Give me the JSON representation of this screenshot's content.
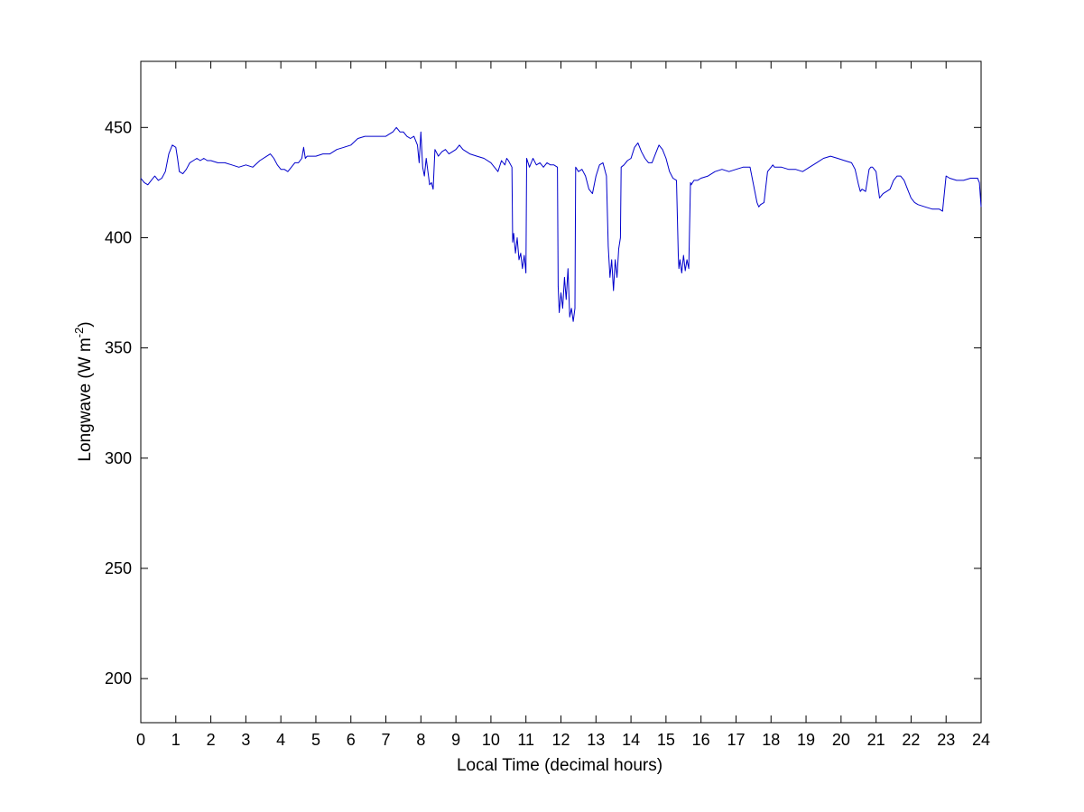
{
  "chart_data": {
    "type": "line",
    "title": "",
    "xlabel": "Local Time (decimal hours)",
    "ylabel": "Longwave (W m",
    "ylabel_sup": "-2",
    "ylabel_suffix": ")",
    "xlim": [
      0,
      24
    ],
    "ylim": [
      180,
      480
    ],
    "xticks": [
      "0",
      "1",
      "2",
      "3",
      "4",
      "5",
      "6",
      "7",
      "8",
      "9",
      "10",
      "11",
      "12",
      "13",
      "14",
      "15",
      "16",
      "17",
      "18",
      "19",
      "20",
      "21",
      "22",
      "23",
      "24"
    ],
    "yticks": [
      "200",
      "250",
      "300",
      "350",
      "400",
      "450"
    ],
    "grid": false,
    "line_color": "#0000cc",
    "series": [
      {
        "x": [
          0,
          0.1,
          0.2,
          0.3,
          0.4,
          0.5,
          0.6,
          0.7,
          0.8,
          0.9,
          1.0,
          1.05,
          1.1,
          1.2,
          1.3,
          1.4,
          1.5,
          1.6,
          1.7,
          1.8,
          1.9,
          2.0,
          2.2,
          2.4,
          2.6,
          2.8,
          3.0,
          3.2,
          3.4,
          3.6,
          3.7,
          3.8,
          3.9,
          4.0,
          4.1,
          4.2,
          4.3,
          4.4,
          4.5,
          4.6,
          4.65,
          4.7,
          4.75,
          4.8,
          5.0,
          5.2,
          5.4,
          5.6,
          5.8,
          6.0,
          6.2,
          6.4,
          6.6,
          6.8,
          7.0,
          7.1,
          7.2,
          7.3,
          7.4,
          7.5,
          7.6,
          7.7,
          7.8,
          7.9,
          7.95,
          8.0,
          8.05,
          8.1,
          8.15,
          8.2,
          8.25,
          8.3,
          8.35,
          8.4,
          8.5,
          8.6,
          8.7,
          8.8,
          8.9,
          9.0,
          9.1,
          9.2,
          9.4,
          9.6,
          9.8,
          10.0,
          10.2,
          10.3,
          10.4,
          10.45,
          10.5,
          10.6,
          10.62,
          10.65,
          10.7,
          10.75,
          10.8,
          10.85,
          10.9,
          10.95,
          11.0,
          11.02,
          11.1,
          11.2,
          11.3,
          11.4,
          11.5,
          11.6,
          11.7,
          11.8,
          11.9,
          11.92,
          11.95,
          12.0,
          12.05,
          12.1,
          12.15,
          12.2,
          12.25,
          12.3,
          12.35,
          12.4,
          12.42,
          12.5,
          12.6,
          12.7,
          12.8,
          12.9,
          13.0,
          13.1,
          13.2,
          13.3,
          13.35,
          13.4,
          13.45,
          13.5,
          13.55,
          13.6,
          13.65,
          13.7,
          13.72,
          13.8,
          13.9,
          14.0,
          14.1,
          14.2,
          14.3,
          14.4,
          14.5,
          14.6,
          14.7,
          14.8,
          14.9,
          15.0,
          15.1,
          15.2,
          15.3,
          15.35,
          15.37,
          15.4,
          15.45,
          15.5,
          15.55,
          15.6,
          15.65,
          15.7,
          15.72,
          15.8,
          15.9,
          16.0,
          16.2,
          16.4,
          16.6,
          16.8,
          17.0,
          17.2,
          17.4,
          17.6,
          17.65,
          17.7,
          17.8,
          17.9,
          18.0,
          18.05,
          18.1,
          18.3,
          18.5,
          18.7,
          18.9,
          19.1,
          19.3,
          19.5,
          19.7,
          19.9,
          20.1,
          20.3,
          20.4,
          20.5,
          20.55,
          20.6,
          20.7,
          20.8,
          20.85,
          20.9,
          21.0,
          21.1,
          21.15,
          21.2,
          21.3,
          21.4,
          21.5,
          21.6,
          21.7,
          21.8,
          21.9,
          22.0,
          22.1,
          22.2,
          22.4,
          22.6,
          22.8,
          22.9,
          23.0,
          23.1,
          23.3,
          23.5,
          23.7,
          23.9,
          23.95,
          24.0
        ],
        "y": [
          427,
          425,
          424,
          426,
          428,
          426,
          427,
          430,
          438,
          442,
          441,
          436,
          430,
          429,
          431,
          434,
          435,
          436,
          435,
          436,
          435,
          435,
          434,
          434,
          433,
          432,
          433,
          432,
          435,
          437,
          438,
          436,
          433,
          431,
          431,
          430,
          432,
          434,
          434,
          436,
          441,
          436,
          437,
          437,
          437,
          438,
          438,
          440,
          441,
          442,
          445,
          446,
          446,
          446,
          446,
          447,
          448,
          450,
          448,
          448,
          446,
          445,
          446,
          442,
          434,
          448,
          432,
          428,
          436,
          430,
          424,
          425,
          422,
          440,
          437,
          439,
          440,
          438,
          439,
          440,
          442,
          440,
          438,
          437,
          436,
          434,
          430,
          435,
          433,
          436,
          435,
          432,
          398,
          402,
          393,
          400,
          390,
          393,
          386,
          392,
          384,
          436,
          432,
          436,
          433,
          434,
          432,
          434,
          433,
          433,
          432,
          378,
          366,
          375,
          368,
          382,
          372,
          386,
          364,
          368,
          362,
          368,
          432,
          430,
          431,
          428,
          422,
          420,
          428,
          433,
          434,
          428,
          396,
          382,
          390,
          376,
          390,
          382,
          395,
          400,
          432,
          433,
          435,
          436,
          441,
          443,
          439,
          436,
          434,
          434,
          438,
          442,
          440,
          436,
          430,
          427,
          426,
          392,
          386,
          390,
          384,
          392,
          385,
          390,
          386,
          425,
          424,
          426,
          426,
          427,
          428,
          430,
          431,
          430,
          431,
          432,
          432,
          416,
          414,
          415,
          416,
          430,
          432,
          433,
          432,
          432,
          431,
          431,
          430,
          432,
          434,
          436,
          437,
          436,
          435,
          434,
          431,
          424,
          421,
          422,
          421,
          431,
          432,
          432,
          430,
          418,
          419,
          420,
          421,
          422,
          426,
          428,
          428,
          426,
          422,
          418,
          416,
          415,
          414,
          413,
          413,
          412,
          428,
          427,
          426,
          426,
          427,
          427,
          425,
          414
        ]
      }
    ]
  }
}
